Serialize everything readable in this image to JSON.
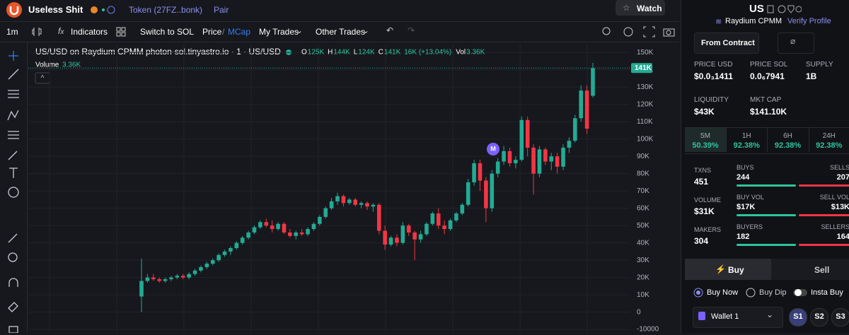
{
  "header": {
    "title": "Useless Shit",
    "token": "Token (27FZ..bonk)",
    "pair": "Pair",
    "watch": "Watch"
  },
  "toolbar": {
    "interval": "1m",
    "indicators": "Indicators",
    "switch": "Switch to SOL",
    "price": "Price",
    "separator": "/",
    "mcap": "MCap",
    "my_trades": "My Trades",
    "other_trades": "Other Trades"
  },
  "chart_data": {
    "type": "candlestick",
    "title": "US/USD on Raydium CPMM photon-sol.tinyastro.io · 1 · US/USD",
    "legend": {
      "items": [
        {
          "key": "O",
          "value": "125K"
        },
        {
          "key": "H",
          "value": "144K"
        },
        {
          "key": "L",
          "value": "124K"
        },
        {
          "key": "C",
          "value": "141K"
        }
      ],
      "change": "16K (+13.04%)",
      "vol_key": "Vol",
      "vol_value": "3.36K"
    },
    "volume_label": "Volume",
    "volume_value": "3.36K",
    "last_price_label": "141K",
    "annotations": [
      "M"
    ],
    "up_color": "#22ab94",
    "down_color": "#f23645",
    "grid": true,
    "ylim": [
      -12000,
      155000
    ],
    "yticks": [
      -10000,
      0,
      {
        "value": 10000,
        "label": "10K"
      },
      {
        "value": 20000,
        "label": "20K"
      },
      {
        "value": 30000,
        "label": "30K"
      },
      {
        "value": 40000,
        "label": "40K"
      },
      {
        "value": 50000,
        "label": "50K"
      },
      {
        "value": 60000,
        "label": "60K"
      },
      {
        "value": 70000,
        "label": "70K"
      },
      {
        "value": 80000,
        "label": "80K"
      },
      {
        "value": 90000,
        "label": "90K"
      },
      {
        "value": 100000,
        "label": "100K"
      },
      {
        "value": 110000,
        "label": "110K"
      },
      {
        "value": 120000,
        "label": "120K"
      },
      {
        "value": 130000,
        "label": "130K"
      },
      {
        "value": 140000,
        "label": "140K"
      },
      {
        "value": 150000,
        "label": "150K"
      }
    ],
    "open": [
      9000,
      18000,
      20000,
      19000,
      18000,
      19000,
      20000,
      21000,
      20000,
      22000,
      24000,
      26000,
      28000,
      30000,
      33000,
      35000,
      37000,
      40000,
      43000,
      46000,
      49000,
      52000,
      50000,
      48000,
      51000,
      46000,
      44000,
      46000,
      45000,
      48000,
      51000,
      55000,
      60000,
      64000,
      67000,
      63000,
      65000,
      62000,
      63000,
      61000,
      62000,
      47000,
      39000,
      43000,
      40000,
      50000,
      46000,
      42000,
      45000,
      51000,
      57000,
      50000,
      48000,
      53000,
      57000,
      62000,
      75000,
      86000,
      76000,
      60000,
      80000,
      87000,
      93000,
      86000,
      88000,
      111000,
      95000,
      80000,
      94000,
      87000,
      90000,
      84000,
      95000,
      99000,
      112000,
      128000,
      125000
    ],
    "high": [
      31000,
      22000,
      22000,
      20000,
      20000,
      21000,
      22000,
      22000,
      23000,
      25000,
      27000,
      29000,
      31000,
      34000,
      36000,
      38000,
      41000,
      44000,
      47000,
      50000,
      53000,
      54000,
      53000,
      52000,
      52000,
      48000,
      47000,
      48000,
      49000,
      52000,
      56000,
      61000,
      66000,
      69000,
      68000,
      66000,
      66000,
      64000,
      64000,
      63000,
      63000,
      50000,
      44000,
      45000,
      52000,
      51000,
      47000,
      47000,
      52000,
      58000,
      60000,
      53000,
      54000,
      58000,
      63000,
      77000,
      88000,
      88000,
      78000,
      82000,
      89000,
      96000,
      95000,
      90000,
      113000,
      113000,
      97000,
      96000,
      95000,
      92000,
      92000,
      97000,
      101000,
      114000,
      131000,
      131000,
      144000
    ],
    "low": [
      0,
      17000,
      18000,
      17000,
      17000,
      18000,
      19000,
      19000,
      19000,
      21000,
      23000,
      25000,
      27000,
      29000,
      32000,
      33000,
      36000,
      39000,
      42000,
      45000,
      48000,
      49000,
      46000,
      47000,
      45000,
      43000,
      42000,
      44000,
      44000,
      47000,
      50000,
      54000,
      59000,
      62000,
      61000,
      62000,
      61000,
      60000,
      59000,
      58000,
      45000,
      36000,
      38000,
      38000,
      39000,
      44000,
      30000,
      40000,
      44000,
      50000,
      48000,
      45000,
      47000,
      52000,
      56000,
      61000,
      73000,
      70000,
      52000,
      58000,
      78000,
      85000,
      84000,
      83000,
      87000,
      90000,
      68000,
      78000,
      85000,
      82000,
      80000,
      82000,
      92000,
      98000,
      110000,
      103000,
      124000
    ],
    "close": [
      18000,
      20000,
      19000,
      18000,
      19000,
      20000,
      21000,
      20000,
      22000,
      24000,
      26000,
      28000,
      30000,
      33000,
      35000,
      37000,
      40000,
      43000,
      46000,
      49000,
      52000,
      50000,
      48000,
      51000,
      46000,
      44000,
      46000,
      45000,
      48000,
      51000,
      55000,
      60000,
      64000,
      67000,
      63000,
      65000,
      62000,
      63000,
      61000,
      62000,
      47000,
      39000,
      43000,
      40000,
      50000,
      46000,
      42000,
      45000,
      51000,
      57000,
      50000,
      48000,
      53000,
      57000,
      62000,
      75000,
      86000,
      76000,
      60000,
      80000,
      87000,
      93000,
      86000,
      88000,
      111000,
      95000,
      80000,
      94000,
      87000,
      90000,
      84000,
      95000,
      99000,
      112000,
      128000,
      106000,
      141000
    ]
  },
  "panel": {
    "symbol": "US",
    "dex": "Raydium CPMM",
    "verify": "Verify Profile",
    "from_contract": "From Contract",
    "stats": [
      {
        "label": "PRICE USD",
        "value": "$0.0₃1411"
      },
      {
        "label": "PRICE SOL",
        "value": "0.0₆7941"
      },
      {
        "label": "SUPPLY",
        "value": "1B"
      },
      {
        "label": "LIQUIDITY",
        "value": "$43K"
      },
      {
        "label": "MKT CAP",
        "value": "$141.10K"
      }
    ],
    "timeframes": [
      {
        "label": "5M",
        "value": "50.39%"
      },
      {
        "label": "1H",
        "value": "92.38%"
      },
      {
        "label": "6H",
        "value": "92.38%"
      },
      {
        "label": "24H",
        "value": "92.38%"
      }
    ],
    "activity": [
      {
        "label": "TXNS",
        "value": "451",
        "left_label": "BUYS",
        "left_value": "244",
        "right_label": "SELLS",
        "right_value": "207"
      },
      {
        "label": "VOLUME",
        "value": "$31K",
        "left_label": "BUY VOL",
        "left_value": "$17K",
        "right_label": "SELL VOL",
        "right_value": "$13K"
      },
      {
        "label": "MAKERS",
        "value": "304",
        "left_label": "BUYERS",
        "left_value": "182",
        "right_label": "SELLERS",
        "right_value": "164"
      }
    ],
    "buy": "Buy",
    "sell": "Sell",
    "buy_now": "Buy Now",
    "buy_dip": "Buy Dip",
    "insta_buy": "Insta Buy",
    "wallet": "Wallet 1",
    "slots": [
      "S1",
      "S2",
      "S3"
    ]
  }
}
